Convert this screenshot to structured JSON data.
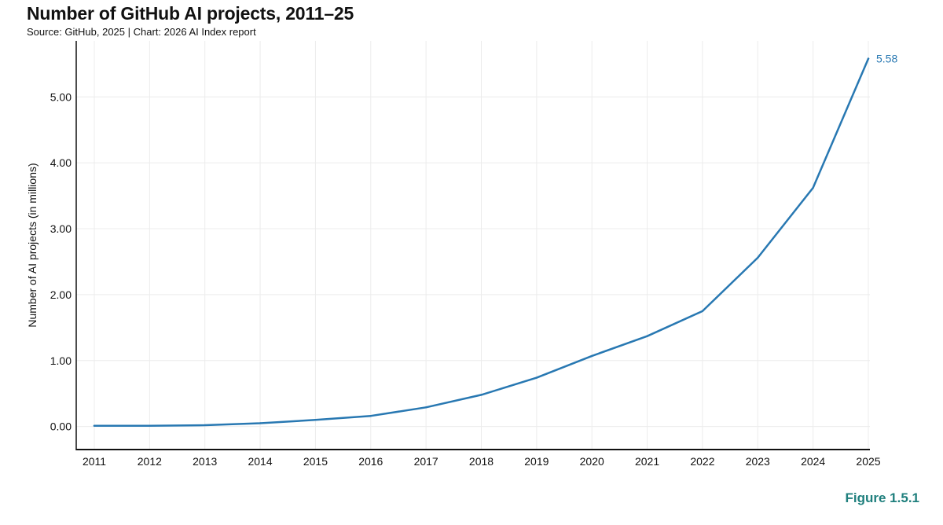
{
  "header": {
    "title": "Number of GitHub AI projects, 2011–25",
    "subtitle": "Source: GitHub, 2025 | Chart: 2026 AI Index report"
  },
  "figure_label": "Figure 1.5.1",
  "colors": {
    "line": "#2878b2",
    "grid": "#ececec",
    "axis": "#111111",
    "figure_label": "#1f7f7d"
  },
  "chart_data": {
    "type": "line",
    "title": "Number of GitHub AI projects, 2011–25",
    "subtitle": "Source: GitHub, 2025 | Chart: 2026 AI Index report",
    "xlabel": "",
    "ylabel": "Number of AI projects (in millions)",
    "categories": [
      "2011",
      "2012",
      "2013",
      "2014",
      "2015",
      "2016",
      "2017",
      "2018",
      "2019",
      "2020",
      "2021",
      "2022",
      "2023",
      "2024",
      "2025"
    ],
    "series": [
      {
        "values": [
          0.01,
          0.01,
          0.02,
          0.05,
          0.1,
          0.16,
          0.29,
          0.48,
          0.74,
          1.07,
          1.37,
          1.75,
          2.56,
          3.62,
          5.58
        ]
      }
    ],
    "yticks": [
      "0.00",
      "1.00",
      "2.00",
      "3.00",
      "4.00",
      "5.00"
    ],
    "ylim": [
      -0.35,
      5.85
    ],
    "end_label": "5.58",
    "grid": true,
    "legend": "none"
  }
}
